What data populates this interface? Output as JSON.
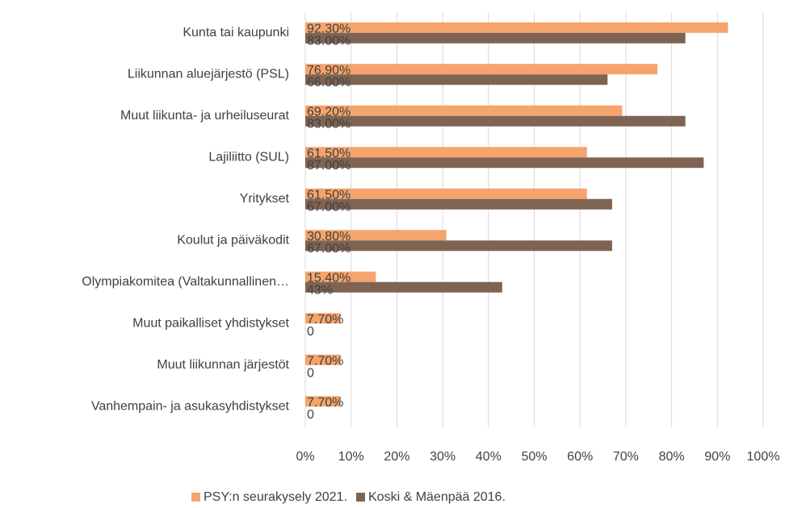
{
  "chart_data": {
    "type": "bar",
    "orientation": "horizontal",
    "categories": [
      "Kunta tai kaupunki",
      "Liikunnan aluejärjestö (PSL)",
      "Muut liikunta- ja urheiluseurat",
      "Lajiliitto (SUL)",
      "Yritykset",
      "Koulut ja päiväkodit",
      "Olympiakomitea (Valtakunnallinen…",
      "Muut paikalliset yhdistykset",
      "Muut liikunnan järjestöt",
      "Vanhempain- ja asukasyhdistykset"
    ],
    "series": [
      {
        "name": "PSY:n seurakysely 2021.",
        "color": "#f4a46c",
        "values": [
          92.3,
          76.9,
          69.2,
          61.5,
          61.5,
          30.8,
          15.4,
          7.7,
          7.7,
          7.7
        ],
        "value_labels": [
          "92.30%",
          "76.90%",
          "69.20%",
          "61.50%",
          "61.50%",
          "30.80%",
          "15.40%",
          "7.70%",
          "7.70%",
          "7.70%"
        ]
      },
      {
        "name": "Koski & Mäenpää 2016.",
        "color": "#7f6353",
        "values": [
          83,
          66,
          83,
          87,
          67,
          67,
          43,
          0,
          0,
          0
        ],
        "value_labels": [
          "83.00%",
          "66.00%",
          "83.00%",
          "87.00%",
          "67.00%",
          "67.00%",
          "43%",
          "0",
          "0",
          "0"
        ]
      }
    ],
    "xlim": [
      0,
      100
    ],
    "xticks": [
      {
        "value": 0,
        "label": "0%"
      },
      {
        "value": 10,
        "label": "10%"
      },
      {
        "value": 20,
        "label": "20%"
      },
      {
        "value": 30,
        "label": "30%"
      },
      {
        "value": 40,
        "label": "40%"
      },
      {
        "value": 50,
        "label": "50%"
      },
      {
        "value": 60,
        "label": "60%"
      },
      {
        "value": 70,
        "label": "70%"
      },
      {
        "value": 80,
        "label": "80%"
      },
      {
        "value": 90,
        "label": "90%"
      },
      {
        "value": 100,
        "label": "100%"
      }
    ],
    "grid": true,
    "legend": "bottom"
  }
}
